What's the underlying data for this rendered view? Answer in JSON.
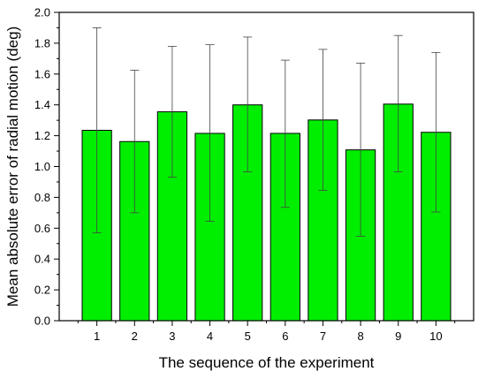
{
  "chart_data": {
    "type": "bar",
    "xlabel": "The sequence of the experiment",
    "ylabel": "Mean absolute error of radial motion (deg)",
    "categories": [
      "1",
      "2",
      "3",
      "4",
      "5",
      "6",
      "7",
      "8",
      "9",
      "10"
    ],
    "values": [
      1.235,
      1.162,
      1.355,
      1.215,
      1.4,
      1.215,
      1.302,
      1.108,
      1.405,
      1.222
    ],
    "error_lower": [
      0.57,
      0.7,
      0.93,
      0.645,
      0.965,
      0.735,
      0.845,
      0.548,
      0.965,
      0.705
    ],
    "error_upper": [
      1.9,
      1.625,
      1.78,
      1.79,
      1.84,
      1.69,
      1.76,
      1.67,
      1.85,
      1.74
    ],
    "ylim": [
      0,
      2.0
    ],
    "yticks": [
      "0.0",
      "0.2",
      "0.4",
      "0.6",
      "0.8",
      "1.0",
      "1.2",
      "1.4",
      "1.6",
      "1.8",
      "2.0"
    ],
    "xlim": [
      0,
      11
    ],
    "bar_color": "#00ee00",
    "grid": false,
    "legend": "none"
  }
}
